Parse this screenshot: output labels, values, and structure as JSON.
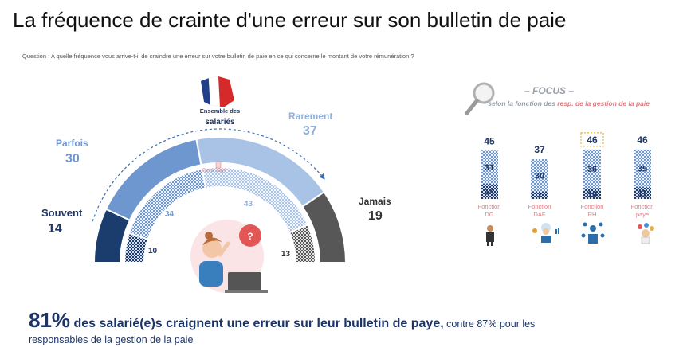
{
  "title": "La fréquence de crainte d'une erreur sur son bulletin de paie",
  "question": "Question : A quelle fréquence vous arrive-t-il de craindre une erreur sur votre bulletin de paie en ce qui concerne le montant de votre rémunération ?",
  "ensemble_label": "Ensemble des",
  "ensemble_label2": "salariés",
  "resp_paye_label": "Resp. paye",
  "focus": {
    "title": "– FOCUS –",
    "sub_prefix": "selon la fonction des ",
    "sub_highlight": "resp. de la gestion de la paie"
  },
  "bottom": {
    "pct": "81%",
    "strong": " des salarié(e)s craignent une erreur sur leur bulletin de paye,",
    "normal": " contre 87% pour les responsables de la gestion de la paie"
  },
  "colors": {
    "souvent": "#1a3d6d",
    "parfois": "#6e97d0",
    "rarement": "#a9c3e6",
    "jamais": "#575757",
    "label_blue": "#1d3566",
    "label_light": "#8fb0dc",
    "pink": "#e07c80",
    "dash": "#3a6fb5"
  },
  "chart_data": [
    {
      "type": "pie",
      "name": "Ensemble des salariés",
      "categories": [
        "Souvent",
        "Parfois",
        "Rarement",
        "Jamais"
      ],
      "values": [
        14,
        30,
        37,
        19
      ]
    },
    {
      "type": "pie",
      "name": "Resp. paye",
      "categories": [
        "Souvent",
        "Parfois",
        "Rarement",
        "Jamais"
      ],
      "values": [
        10,
        34,
        43,
        13
      ]
    },
    {
      "type": "bar",
      "title": "– FOCUS –",
      "categories": [
        "Fonction DG",
        "Fonction DAF",
        "Fonction RH",
        "Fonction paye"
      ],
      "series": [
        {
          "name": "Souvent",
          "values": [
            14,
            7,
            10,
            11
          ]
        },
        {
          "name": "Parfois",
          "values": [
            31,
            30,
            36,
            35
          ]
        }
      ],
      "totals": [
        45,
        37,
        46,
        46
      ],
      "highlighted_total_index": 2
    }
  ]
}
